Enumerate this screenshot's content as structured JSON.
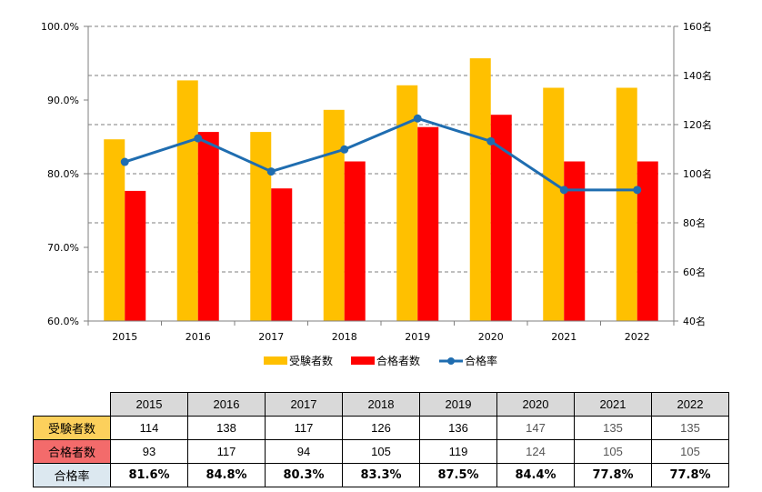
{
  "chart_data": {
    "type": "bar+line",
    "categories": [
      "2015",
      "2016",
      "2017",
      "2018",
      "2019",
      "2020",
      "2021",
      "2022"
    ],
    "series": [
      {
        "name": "受験者数",
        "type": "bar",
        "axis": "right",
        "color": "#FFC000",
        "values": [
          114,
          138,
          117,
          126,
          136,
          147,
          135,
          135
        ]
      },
      {
        "name": "合格者数",
        "type": "bar",
        "axis": "right",
        "color": "#FF0000",
        "values": [
          93,
          117,
          94,
          105,
          119,
          124,
          105,
          105
        ]
      },
      {
        "name": "合格率",
        "type": "line",
        "axis": "left",
        "color": "#1F6DB0",
        "values": [
          81.6,
          84.8,
          80.3,
          83.3,
          87.5,
          84.4,
          77.8,
          77.8
        ]
      }
    ],
    "y_left": {
      "min": 60,
      "max": 100,
      "step": 10,
      "ticks": [
        "60.0%",
        "70.0%",
        "80.0%",
        "90.0%",
        "100.0%"
      ]
    },
    "y_right": {
      "min": 40,
      "max": 160,
      "step": 20,
      "ticks": [
        "40名",
        "60名",
        "80名",
        "100名",
        "120名",
        "140名",
        "160名"
      ]
    },
    "gridlines": "dashed horizontal",
    "legend": "bottom-center"
  },
  "table": {
    "years": [
      "2015",
      "2016",
      "2017",
      "2018",
      "2019",
      "2020",
      "2021",
      "2022"
    ],
    "rows": [
      {
        "label": "受験者数",
        "values": [
          "114",
          "138",
          "117",
          "126",
          "136",
          "147",
          "135",
          "135"
        ]
      },
      {
        "label": "合格者数",
        "values": [
          "93",
          "117",
          "94",
          "105",
          "119",
          "124",
          "105",
          "105"
        ]
      },
      {
        "label": "合格率",
        "values": [
          "81.6%",
          "84.8%",
          "80.3%",
          "83.3%",
          "87.5%",
          "84.4%",
          "77.8%",
          "77.8%"
        ]
      }
    ]
  }
}
